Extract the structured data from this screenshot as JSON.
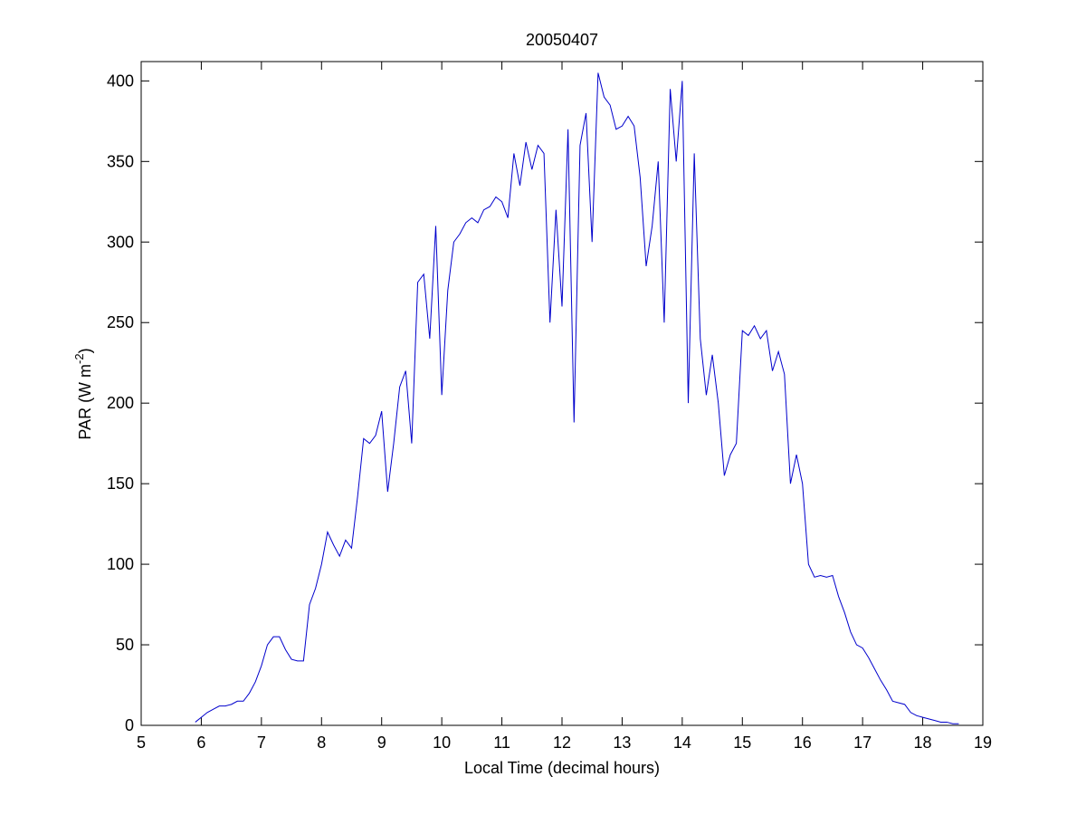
{
  "chart_data": {
    "type": "line",
    "title": "20050407",
    "xlabel": "Local Time (decimal hours)",
    "ylabel": [
      "PAR (W m",
      "-2",
      ")"
    ],
    "x": [
      5.9,
      6,
      6.1,
      6.2,
      6.3,
      6.4,
      6.5,
      6.6,
      6.7,
      6.8,
      6.9,
      7,
      7.1,
      7.2,
      7.3,
      7.4,
      7.5,
      7.6,
      7.7,
      7.8,
      7.9,
      8,
      8.1,
      8.2,
      8.3,
      8.4,
      8.5,
      8.6,
      8.7,
      8.8,
      8.9,
      9,
      9.1,
      9.2,
      9.3,
      9.4,
      9.5,
      9.6,
      9.7,
      9.8,
      9.9,
      10,
      10.1,
      10.2,
      10.3,
      10.4,
      10.5,
      10.6,
      10.7,
      10.8,
      10.9,
      11,
      11.1,
      11.2,
      11.3,
      11.4,
      11.5,
      11.6,
      11.7,
      11.8,
      11.9,
      12,
      12.1,
      12.2,
      12.3,
      12.4,
      12.5,
      12.6,
      12.7,
      12.8,
      12.9,
      13,
      13.1,
      13.2,
      13.3,
      13.4,
      13.5,
      13.6,
      13.7,
      13.8,
      13.9,
      14,
      14.1,
      14.2,
      14.3,
      14.4,
      14.5,
      14.6,
      14.7,
      14.8,
      14.9,
      15,
      15.1,
      15.2,
      15.3,
      15.4,
      15.5,
      15.6,
      15.7,
      15.8,
      15.9,
      16,
      16.1,
      16.2,
      16.3,
      16.4,
      16.5,
      16.6,
      16.7,
      16.8,
      16.9,
      17,
      17.1,
      17.2,
      17.3,
      17.4,
      17.5,
      17.6,
      17.7,
      17.8,
      17.9,
      18,
      18.1,
      18.2,
      18.3,
      18.4,
      18.5,
      18.6
    ],
    "series": [
      {
        "color": "#0000cc",
        "values": [
          2,
          5,
          8,
          10,
          12,
          12,
          13,
          15,
          15,
          20,
          27,
          37,
          50,
          55,
          55,
          47,
          41,
          40,
          40,
          75,
          85,
          100,
          120,
          112,
          105,
          115,
          110,
          142,
          178,
          175,
          180,
          195,
          145,
          175,
          210,
          220,
          175,
          275,
          280,
          240,
          310,
          205,
          270,
          300,
          305,
          312,
          315,
          312,
          320,
          322,
          328,
          325,
          315,
          355,
          335,
          362,
          345,
          360,
          355,
          250,
          320,
          260,
          370,
          188,
          360,
          380,
          300,
          405,
          390,
          385,
          370,
          372,
          378,
          372,
          340,
          285,
          310,
          350,
          250,
          395,
          350,
          400,
          200,
          355,
          240,
          205,
          230,
          200,
          155,
          168,
          175,
          245,
          242,
          248,
          240,
          245,
          220,
          232,
          218,
          150,
          168,
          150,
          100,
          92,
          93,
          92,
          93,
          80,
          70,
          58,
          50,
          48,
          42,
          35,
          28,
          22,
          15,
          14,
          13,
          8,
          6,
          5,
          4,
          3,
          2,
          2,
          1,
          1
        ]
      }
    ],
    "xlim": [
      5,
      19
    ],
    "xticks": [
      5,
      6,
      7,
      8,
      9,
      10,
      11,
      12,
      13,
      14,
      15,
      16,
      17,
      18,
      19
    ],
    "ylim": [
      0,
      412
    ],
    "yticks": [
      0,
      50,
      100,
      150,
      200,
      250,
      300,
      350,
      400
    ],
    "grid": false
  }
}
